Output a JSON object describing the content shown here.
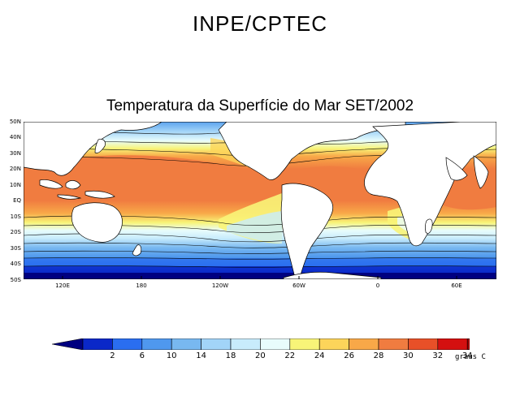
{
  "org_title": "INPE/CPTEC",
  "map_title": "Temperatura da Superfície do Mar SET/2002",
  "lat_labels": [
    "50N",
    "40N",
    "30N",
    "20N",
    "10N",
    "EQ",
    "10S",
    "20S",
    "30S",
    "40S",
    "50S"
  ],
  "lon_labels": [
    "120E",
    "180",
    "120W",
    "60W",
    "0",
    "60E"
  ],
  "colorbar": {
    "units": "graus C",
    "tick_labels": [
      "2",
      "6",
      "10",
      "14",
      "18",
      "20",
      "22",
      "24",
      "26",
      "28",
      "30",
      "32",
      "34"
    ],
    "colors": [
      "#000080",
      "#0a28c8",
      "#2a6ef0",
      "#4f98ee",
      "#78b8f0",
      "#a2d4f8",
      "#c8ecfc",
      "#e8fcfc",
      "#f8f478",
      "#fcd45a",
      "#f8a848",
      "#f07c40",
      "#e85028",
      "#d41010",
      "#a00000"
    ]
  },
  "chart_data": {
    "type": "heatmap",
    "title": "Temperatura da Superfície do Mar SET/2002",
    "variable": "Sea surface temperature",
    "units": "graus C",
    "lat_range": [
      -50,
      50
    ],
    "lon_range": [
      80,
      400
    ],
    "contour_levels": [
      2,
      6,
      10,
      14,
      18,
      20,
      22,
      24,
      26,
      28,
      30,
      32,
      34
    ]
  }
}
